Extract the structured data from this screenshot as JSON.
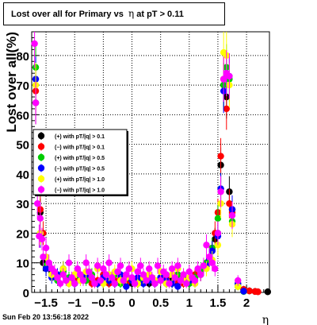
{
  "title": {
    "prefix": "Lost over all for Primary vs",
    "symbol": "η",
    "suffix": "at pT > 0.11"
  },
  "timestamp": "Sun Feb 20 13:56:18 2022",
  "chart_data": {
    "type": "scatter",
    "xlabel": "η",
    "ylabel": "Lost over all(%)",
    "xlim": [
      -1.75,
      2.4
    ],
    "ylim": [
      0,
      88
    ],
    "xticks": [
      -1.5,
      -1,
      -0.5,
      0,
      0.5,
      1,
      1.5,
      2
    ],
    "xtick_labels": [
      "−1.5",
      "−1",
      "−0.5",
      "0",
      "0.5",
      "1",
      "1.5",
      "2"
    ],
    "yticks": [
      0,
      10,
      20,
      30,
      40,
      50,
      60,
      70,
      80
    ],
    "grid": true,
    "legend_position": "center-left",
    "series": [
      {
        "name": "(+) with pT/|q| > 0.1",
        "color": "#000000",
        "x": [
          -1.68,
          -1.6,
          -1.55,
          -1.5,
          -1.4,
          -1.3,
          -1.2,
          -1.1,
          -1.0,
          -0.9,
          -0.8,
          -0.7,
          -0.6,
          -0.5,
          -0.4,
          -0.3,
          -0.2,
          -0.1,
          0.0,
          0.1,
          0.2,
          0.3,
          0.4,
          0.5,
          0.6,
          0.7,
          0.8,
          0.9,
          1.0,
          1.1,
          1.2,
          1.3,
          1.4,
          1.45,
          1.5,
          1.55,
          1.6,
          1.65,
          1.7,
          1.75,
          1.85,
          1.95,
          2.05,
          2.15,
          2.37
        ],
        "y": [
          64,
          27,
          10,
          8,
          7,
          5,
          8,
          4,
          3,
          5,
          6,
          4,
          3,
          5,
          4,
          3,
          5,
          4,
          3,
          4,
          3,
          3,
          4,
          5,
          3,
          4,
          3,
          4,
          3,
          5,
          6,
          9,
          14,
          18,
          20,
          43,
          70,
          66,
          34,
          28,
          3,
          1,
          0.5,
          0.3,
          0.2
        ]
      },
      {
        "name": "(−) with pT/|q| > 0.1",
        "color": "#ff0000",
        "x": [
          -1.68,
          -1.6,
          -1.55,
          -1.5,
          -1.4,
          -1.3,
          -1.2,
          -1.1,
          -1.0,
          -0.9,
          -0.8,
          -0.7,
          -0.6,
          -0.5,
          -0.4,
          -0.3,
          -0.2,
          -0.1,
          0.0,
          0.1,
          0.2,
          0.3,
          0.4,
          0.5,
          0.6,
          0.7,
          0.8,
          0.9,
          1.0,
          1.1,
          1.2,
          1.3,
          1.4,
          1.45,
          1.5,
          1.55,
          1.6,
          1.65,
          1.7,
          1.75,
          1.85,
          1.95,
          2.05,
          2.15,
          2.2
        ],
        "y": [
          68,
          28,
          20,
          9,
          6,
          5,
          7,
          3,
          4,
          6,
          5,
          3,
          4,
          6,
          3,
          4,
          5,
          3,
          4,
          3,
          4,
          5,
          3,
          4,
          5,
          3,
          4,
          3,
          4,
          6,
          7,
          10,
          15,
          20,
          27,
          46,
          72,
          62,
          30,
          27,
          2,
          1,
          0.5,
          0.3,
          0.2
        ]
      },
      {
        "name": "(+) with pT/|q| > 0.5",
        "color": "#00cc00",
        "x": [
          -1.68,
          -1.6,
          -1.5,
          -1.4,
          -1.3,
          -1.2,
          -1.1,
          -1.0,
          -0.9,
          -0.8,
          -0.7,
          -0.6,
          -0.5,
          -0.4,
          -0.3,
          -0.2,
          -0.1,
          0.0,
          0.1,
          0.2,
          0.3,
          0.4,
          0.5,
          0.6,
          0.7,
          0.8,
          0.9,
          1.0,
          1.1,
          1.2,
          1.3,
          1.4,
          1.5,
          1.55,
          1.6,
          1.65,
          1.7,
          1.75,
          1.85,
          1.95
        ],
        "y": [
          76,
          20,
          9,
          6,
          4,
          7,
          5,
          3,
          5,
          4,
          6,
          3,
          5,
          4,
          6,
          3,
          5,
          4,
          3,
          4,
          6,
          3,
          5,
          4,
          3,
          6,
          4,
          3,
          5,
          7,
          10,
          15,
          25,
          35,
          70,
          76,
          72,
          24,
          2,
          0.3
        ]
      },
      {
        "name": "(−) with pT/|q| > 0.5",
        "color": "#0000ff",
        "x": [
          -1.68,
          -1.6,
          -1.5,
          -1.4,
          -1.3,
          -1.2,
          -1.1,
          -1.0,
          -0.9,
          -0.8,
          -0.7,
          -0.6,
          -0.5,
          -0.4,
          -0.3,
          -0.2,
          -0.1,
          0.0,
          0.1,
          0.2,
          0.3,
          0.4,
          0.5,
          0.6,
          0.7,
          0.8,
          0.9,
          1.0,
          1.1,
          1.2,
          1.3,
          1.4,
          1.5,
          1.55,
          1.6,
          1.65,
          1.7,
          1.75,
          1.85,
          1.95
        ],
        "y": [
          72,
          19,
          8,
          5,
          6,
          8,
          4,
          3,
          4,
          6,
          5,
          3,
          5,
          4,
          3,
          6,
          2,
          4,
          5,
          3,
          4,
          3,
          5,
          4,
          3,
          2,
          5,
          4,
          3,
          6,
          9,
          14,
          19,
          35,
          68,
          74,
          73,
          28,
          3,
          0.4
        ]
      },
      {
        "name": "(+) with pT/|q| > 1.0",
        "color": "#ffff00",
        "x": [
          -1.68,
          -1.6,
          -1.5,
          -1.4,
          -1.3,
          -1.2,
          -1.1,
          -1.0,
          -0.9,
          -0.8,
          -0.7,
          -0.6,
          -0.5,
          -0.4,
          -0.3,
          -0.2,
          -0.1,
          0.0,
          0.1,
          0.2,
          0.3,
          0.4,
          0.5,
          0.6,
          0.7,
          0.8,
          0.9,
          1.0,
          1.1,
          1.2,
          1.3,
          1.4,
          1.5,
          1.55,
          1.6,
          1.65,
          1.7,
          1.75,
          1.85
        ],
        "y": [
          70,
          20,
          12,
          6,
          5,
          8,
          3,
          6,
          4,
          7,
          5,
          8,
          3,
          6,
          7,
          4,
          5,
          8,
          3,
          5,
          6,
          4,
          7,
          3,
          6,
          8,
          4,
          5,
          3,
          6,
          8,
          11,
          16,
          30,
          81,
          80,
          70,
          23,
          2
        ]
      },
      {
        "name": "(−) with pT/|q| > 1.0",
        "color": "#ff00ff",
        "x": [
          -1.7,
          -1.68,
          -1.65,
          -1.62,
          -1.6,
          -1.57,
          -1.55,
          -1.5,
          -1.45,
          -1.4,
          -1.35,
          -1.3,
          -1.25,
          -1.2,
          -1.15,
          -1.1,
          -1.05,
          -1.0,
          -0.95,
          -0.9,
          -0.85,
          -0.8,
          -0.75,
          -0.7,
          -0.65,
          -0.6,
          -0.55,
          -0.5,
          -0.45,
          -0.4,
          -0.35,
          -0.3,
          -0.25,
          -0.2,
          -0.15,
          -0.1,
          -0.05,
          0.0,
          0.05,
          0.1,
          0.15,
          0.2,
          0.25,
          0.3,
          0.35,
          0.4,
          0.45,
          0.5,
          0.55,
          0.6,
          0.65,
          0.7,
          0.75,
          0.8,
          0.85,
          0.9,
          0.95,
          1.0,
          1.05,
          1.1,
          1.15,
          1.2,
          1.25,
          1.3,
          1.35,
          1.4,
          1.45,
          1.5,
          1.55,
          1.6,
          1.65,
          1.7,
          1.75,
          1.85
        ],
        "y": [
          84,
          64,
          30,
          19,
          25,
          18,
          12,
          15,
          10,
          8,
          7,
          5,
          3,
          6,
          4,
          10,
          5,
          3,
          8,
          6,
          4,
          10,
          7,
          5,
          3,
          9,
          4,
          8,
          6,
          10,
          5,
          3,
          7,
          9,
          4,
          6,
          8,
          5,
          3,
          7,
          9,
          6,
          4,
          8,
          5,
          3,
          9,
          4,
          7,
          6,
          3,
          8,
          5,
          9,
          4,
          6,
          3,
          7,
          5,
          4,
          8,
          6,
          9,
          16,
          12,
          10,
          8,
          20,
          34,
          72,
          74,
          73,
          26,
          4
        ]
      }
    ]
  }
}
